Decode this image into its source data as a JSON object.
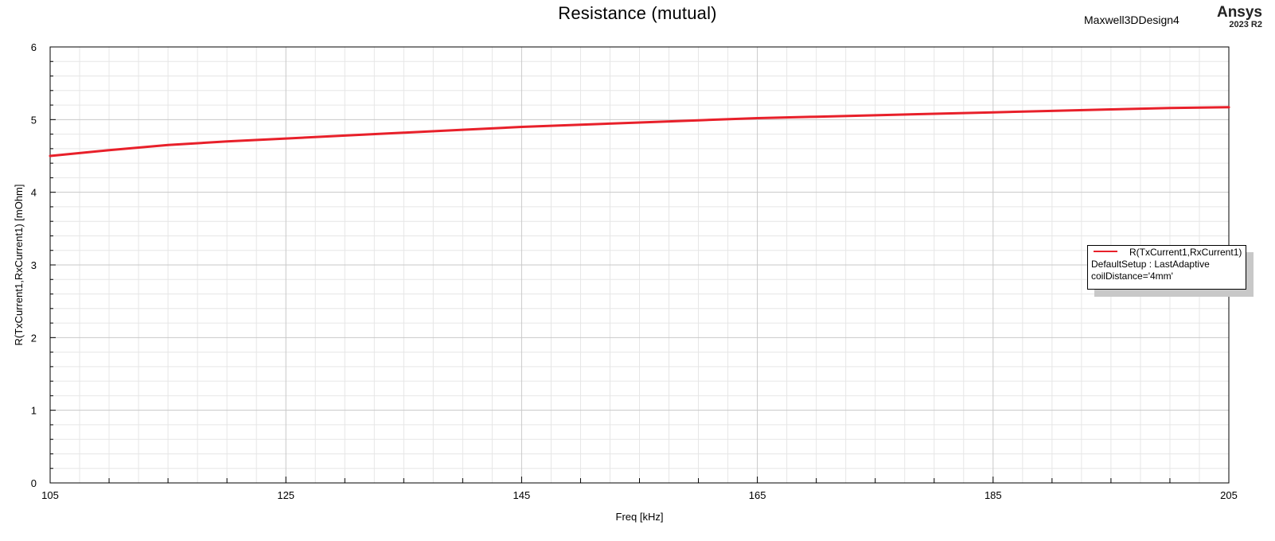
{
  "header": {
    "title": "Resistance (mutual)",
    "design_name": "Maxwell3DDesign4",
    "brand": "Ansys",
    "version": "2023 R2"
  },
  "legend": {
    "series_label": "R(TxCurrent1,RxCurrent1)",
    "line1": "DefaultSetup : LastAdaptive",
    "line2": "coilDistance='4mm'"
  },
  "colors": {
    "series": "#e8202a",
    "grid_major": "#c8c8c8",
    "grid_minor": "#e6e6e6"
  },
  "chart_data": {
    "type": "line",
    "title": "Resistance (mutual)",
    "xlabel": "Freq [kHz]",
    "ylabel": "R(TxCurrent1,RxCurrent1) [mOhm]",
    "xlim": [
      105,
      205
    ],
    "ylim": [
      0,
      6
    ],
    "xticks": [
      105,
      125,
      145,
      165,
      185,
      205
    ],
    "yticks": [
      0,
      1,
      2,
      3,
      4,
      5,
      6
    ],
    "grid": true,
    "legend_position": "right",
    "series": [
      {
        "name": "R(TxCurrent1,RxCurrent1)",
        "x": [
          105,
          110,
          115,
          120,
          125,
          130,
          135,
          140,
          145,
          150,
          155,
          160,
          165,
          170,
          175,
          180,
          185,
          190,
          195,
          200,
          205
        ],
        "values": [
          4.5,
          4.58,
          4.65,
          4.7,
          4.74,
          4.78,
          4.82,
          4.86,
          4.9,
          4.93,
          4.96,
          4.99,
          5.02,
          5.04,
          5.06,
          5.08,
          5.1,
          5.12,
          5.14,
          5.16,
          5.17
        ]
      }
    ]
  }
}
